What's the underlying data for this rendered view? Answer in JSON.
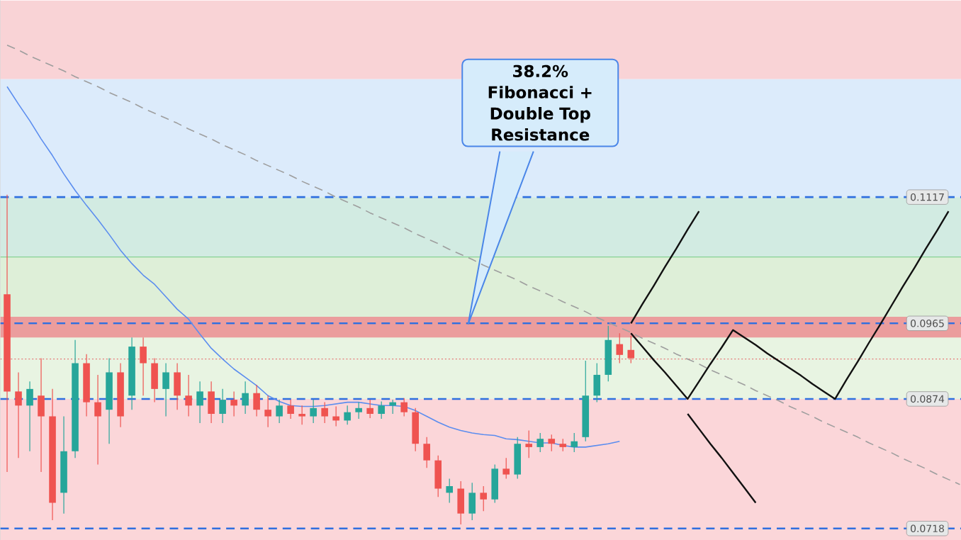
{
  "chart_data": {
    "type": "candlestick",
    "tick_labels": "y",
    "categories": [
      null,
      null,
      null,
      null,
      null,
      null,
      null,
      null,
      null,
      null,
      null,
      null,
      null,
      null,
      null,
      null,
      null,
      null,
      null,
      null,
      null,
      null,
      null,
      null,
      null,
      null,
      null,
      null,
      null,
      null,
      null,
      null,
      null,
      null,
      null,
      null,
      null,
      null,
      null,
      null,
      null,
      null,
      null,
      null,
      null,
      null,
      null,
      null,
      null,
      null,
      null,
      null,
      null,
      null,
      null,
      null,
      null,
      null,
      null,
      null,
      null,
      null,
      null,
      null,
      null,
      null,
      null,
      null,
      null,
      null,
      null,
      null,
      null,
      null,
      null,
      null,
      null,
      null,
      null,
      null,
      null,
      null,
      null,
      null,
      null
    ],
    "ylim": [
      0.0704,
      0.1354
    ],
    "yticks": [
      0.1117,
      0.0965,
      0.0874,
      0.0718
    ],
    "ohlc": [
      [
        0.1,
        0.112,
        0.0786,
        0.0883
      ],
      [
        0.0883,
        0.0906,
        0.0803,
        0.0866
      ],
      [
        0.0866,
        0.0895,
        0.0811,
        0.0886
      ],
      [
        0.0878,
        0.0923,
        0.0786,
        0.0853
      ],
      [
        0.0853,
        0.0886,
        0.0728,
        0.0749
      ],
      [
        0.0761,
        0.0853,
        0.0736,
        0.0811
      ],
      [
        0.0811,
        0.0945,
        0.0803,
        0.0917
      ],
      [
        0.0917,
        0.0928,
        0.0853,
        0.087
      ],
      [
        0.087,
        0.0903,
        0.0795,
        0.0853
      ],
      [
        0.0861,
        0.0923,
        0.082,
        0.0906
      ],
      [
        0.0906,
        0.0917,
        0.084,
        0.0853
      ],
      [
        0.0878,
        0.0948,
        0.0861,
        0.0937
      ],
      [
        0.0937,
        0.0948,
        0.0878,
        0.0917
      ],
      [
        0.0917,
        0.0923,
        0.087,
        0.0886
      ],
      [
        0.0886,
        0.0917,
        0.0853,
        0.0906
      ],
      [
        0.0906,
        0.0917,
        0.0861,
        0.0878
      ],
      [
        0.0878,
        0.0903,
        0.0853,
        0.0866
      ],
      [
        0.0866,
        0.0895,
        0.0845,
        0.0883
      ],
      [
        0.0883,
        0.0895,
        0.0845,
        0.0856
      ],
      [
        0.0856,
        0.0886,
        0.0845,
        0.0873
      ],
      [
        0.0873,
        0.0883,
        0.0853,
        0.0866
      ],
      [
        0.0866,
        0.0895,
        0.0856,
        0.0881
      ],
      [
        0.0881,
        0.0891,
        0.0853,
        0.0861
      ],
      [
        0.0861,
        0.0878,
        0.084,
        0.0853
      ],
      [
        0.0853,
        0.0873,
        0.0845,
        0.0866
      ],
      [
        0.0866,
        0.0873,
        0.085,
        0.0856
      ],
      [
        0.0856,
        0.0866,
        0.0843,
        0.0853
      ],
      [
        0.0853,
        0.0873,
        0.0845,
        0.0863
      ],
      [
        0.0863,
        0.087,
        0.0845,
        0.0853
      ],
      [
        0.0853,
        0.0865,
        0.0841,
        0.0848
      ],
      [
        0.0848,
        0.0866,
        0.0843,
        0.0858
      ],
      [
        0.0858,
        0.087,
        0.085,
        0.0863
      ],
      [
        0.0863,
        0.0873,
        0.0851,
        0.0856
      ],
      [
        0.0856,
        0.0871,
        0.085,
        0.0866
      ],
      [
        0.0866,
        0.0873,
        0.0856,
        0.087
      ],
      [
        0.087,
        0.0875,
        0.0853,
        0.0858
      ],
      [
        0.0858,
        0.0863,
        0.0811,
        0.082
      ],
      [
        0.082,
        0.0828,
        0.0791,
        0.08
      ],
      [
        0.08,
        0.0806,
        0.0756,
        0.0766
      ],
      [
        0.0761,
        0.0778,
        0.0749,
        0.0769
      ],
      [
        0.0766,
        0.0775,
        0.0723,
        0.0736
      ],
      [
        0.0736,
        0.0773,
        0.0728,
        0.0761
      ],
      [
        0.0761,
        0.0769,
        0.0739,
        0.0753
      ],
      [
        0.0753,
        0.0795,
        0.0749,
        0.079
      ],
      [
        0.079,
        0.0803,
        0.0778,
        0.0783
      ],
      [
        0.0783,
        0.0828,
        0.0778,
        0.082
      ],
      [
        0.082,
        0.0836,
        0.0803,
        0.0816
      ],
      [
        0.0816,
        0.0833,
        0.081,
        0.0826
      ],
      [
        0.0826,
        0.0831,
        0.0811,
        0.082
      ],
      [
        0.082,
        0.0826,
        0.0811,
        0.0816
      ],
      [
        0.0816,
        0.0833,
        0.081,
        0.0823
      ],
      [
        0.0828,
        0.092,
        0.0823,
        0.0878
      ],
      [
        0.0878,
        0.0917,
        0.087,
        0.0903
      ],
      [
        0.0903,
        0.0962,
        0.0895,
        0.0945
      ],
      [
        0.094,
        0.0953,
        0.0917,
        0.0927
      ],
      [
        0.0933,
        0.095,
        0.0917,
        0.0923
      ],
      null,
      null,
      null,
      null,
      null,
      null,
      null,
      null,
      null,
      null,
      null,
      null,
      null,
      null,
      null,
      null,
      null,
      null,
      null,
      null,
      null,
      null,
      null,
      null,
      null,
      null,
      null,
      null,
      null
    ],
    "series": [
      {
        "type": "line",
        "color": "#9e9e9e",
        "line_style": "dashed",
        "values": [
          0.13,
          0.1294,
          0.1287,
          0.1281,
          0.1275,
          0.1269,
          0.1262,
          0.1256,
          0.125,
          0.1243,
          0.1237,
          0.1231,
          0.1224,
          0.1218,
          0.1212,
          0.1206,
          0.1199,
          0.1193,
          0.1187,
          0.118,
          0.1174,
          0.1168,
          0.1161,
          0.1155,
          0.1149,
          0.1143,
          0.1136,
          0.113,
          0.1124,
          0.1117,
          0.1111,
          0.1105,
          0.1098,
          0.1092,
          0.1086,
          0.108,
          0.1073,
          0.1067,
          0.1061,
          0.1054,
          0.1048,
          0.1042,
          0.1035,
          0.1029,
          0.1023,
          0.1017,
          0.101,
          0.1004,
          0.0998,
          0.0991,
          0.0985,
          0.0979,
          0.0972,
          0.0966,
          0.096,
          0.0954,
          0.0947,
          0.0941,
          0.0935,
          0.0928,
          0.0922,
          0.0916,
          0.0909,
          0.0903,
          0.0897,
          0.0891,
          0.0884,
          0.0878,
          0.0872,
          0.0865,
          0.0859,
          0.0853,
          0.0846,
          0.084,
          0.0834,
          0.0828,
          0.0821,
          0.0815,
          0.0809,
          0.0802,
          0.0796,
          0.079,
          0.0783,
          0.0777,
          0.0771
        ]
      },
      {
        "type": "line",
        "color": "#5b8def",
        "line_style": "solid",
        "values": [
          0.125,
          0.1229,
          0.1209,
          0.1187,
          0.1167,
          0.1145,
          0.1125,
          0.1107,
          0.109,
          0.1072,
          0.1053,
          0.1037,
          0.1023,
          0.1012,
          0.0997,
          0.0982,
          0.097,
          0.0952,
          0.0935,
          0.0922,
          0.091,
          0.09,
          0.089,
          0.0878,
          0.0871,
          0.0866,
          0.0865,
          0.0865,
          0.0866,
          0.0868,
          0.087,
          0.087,
          0.0868,
          0.0866,
          0.0866,
          0.0865,
          0.086,
          0.0853,
          0.0846,
          0.084,
          0.0836,
          0.0833,
          0.0831,
          0.083,
          0.0826,
          0.0825,
          0.0823,
          0.0821,
          0.0821,
          0.0818,
          0.0816,
          0.0816,
          0.0818,
          0.082,
          0.0823,
          null,
          null,
          null,
          null,
          null,
          null,
          null,
          null,
          null,
          null,
          null,
          null,
          null,
          null,
          null,
          null,
          null,
          null,
          null,
          null,
          null,
          null,
          null,
          null,
          null,
          null,
          null,
          null,
          null,
          null
        ]
      },
      {
        "type": "line",
        "color": "#111111",
        "line_style": "solid",
        "values": [
          null,
          null,
          null,
          null,
          null,
          null,
          null,
          null,
          null,
          null,
          null,
          null,
          null,
          null,
          null,
          null,
          null,
          null,
          null,
          null,
          null,
          null,
          null,
          null,
          null,
          null,
          null,
          null,
          null,
          null,
          null,
          null,
          null,
          null,
          null,
          null,
          null,
          null,
          null,
          null,
          null,
          null,
          null,
          null,
          null,
          null,
          null,
          null,
          null,
          null,
          null,
          null,
          null,
          null,
          null,
          0.0965,
          0.0988,
          0.101,
          0.1033,
          0.1055,
          0.1078,
          0.11,
          null,
          null,
          null,
          null,
          null,
          null,
          null,
          null,
          null,
          null,
          null,
          null,
          null,
          null,
          null,
          null,
          null,
          null,
          null,
          null,
          null,
          null,
          null
        ]
      },
      {
        "type": "line",
        "color": "#111111",
        "line_style": "solid",
        "values": [
          null,
          null,
          null,
          null,
          null,
          null,
          null,
          null,
          null,
          null,
          null,
          null,
          null,
          null,
          null,
          null,
          null,
          null,
          null,
          null,
          null,
          null,
          null,
          null,
          null,
          null,
          null,
          null,
          null,
          null,
          null,
          null,
          null,
          null,
          null,
          null,
          null,
          null,
          null,
          null,
          null,
          null,
          null,
          null,
          null,
          null,
          null,
          null,
          null,
          null,
          null,
          null,
          null,
          null,
          null,
          0.0953,
          0.0937,
          0.0921,
          0.0906,
          0.089,
          0.0874,
          0.0895,
          0.0916,
          0.0936,
          0.0957,
          0.0948,
          0.0939,
          0.0929,
          0.092,
          0.0911,
          0.0902,
          0.0892,
          0.0883,
          0.0874,
          0.0897,
          0.0919,
          0.0942,
          0.0964,
          0.0987,
          0.101,
          0.1032,
          0.1055,
          0.1077,
          0.11,
          null
        ]
      },
      {
        "type": "line",
        "color": "#111111",
        "line_style": "solid",
        "values": [
          null,
          null,
          null,
          null,
          null,
          null,
          null,
          null,
          null,
          null,
          null,
          null,
          null,
          null,
          null,
          null,
          null,
          null,
          null,
          null,
          null,
          null,
          null,
          null,
          null,
          null,
          null,
          null,
          null,
          null,
          null,
          null,
          null,
          null,
          null,
          null,
          null,
          null,
          null,
          null,
          null,
          null,
          null,
          null,
          null,
          null,
          null,
          null,
          null,
          null,
          null,
          null,
          null,
          null,
          null,
          null,
          null,
          null,
          null,
          null,
          0.0856,
          0.0838,
          0.082,
          0.0803,
          0.0785,
          0.0767,
          0.0749,
          null,
          null,
          null,
          null,
          null,
          null,
          null,
          null,
          null,
          null,
          null,
          null,
          null,
          null,
          null,
          null,
          null,
          null
        ]
      }
    ],
    "bands": [
      {
        "axis": "y",
        "from": 0.1259,
        "to": 0.1354,
        "color": "#f9d3d6"
      },
      {
        "axis": "y",
        "from": 0.1117,
        "to": 0.1259,
        "color": "#dcebfb"
      },
      {
        "axis": "y",
        "from": 0.1045,
        "to": 0.1117,
        "color": "#d2ebe2"
      },
      {
        "axis": "y",
        "from": 0.0965,
        "to": 0.1045,
        "color": "#deefd8"
      },
      {
        "axis": "y",
        "from": 0.0874,
        "to": 0.0965,
        "color": "#e8f4e2"
      },
      {
        "axis": "y",
        "from": 0.0704,
        "to": 0.0874,
        "color": "#fbd6d9"
      },
      {
        "axis": "y",
        "from": 0.0948,
        "to": 0.0973,
        "color": "#eb9d9d"
      }
    ],
    "ref_lines": [
      {
        "axis": "y",
        "value": 0.1045,
        "color": "#86d193",
        "line_style": "solid"
      },
      {
        "axis": "y",
        "value": 0.0922,
        "color": "#e57373",
        "line_style": "dotted"
      },
      {
        "axis": "y",
        "value": 0.1117,
        "color": "#2f6fe0",
        "line_style": "dashed"
      },
      {
        "axis": "y",
        "value": 0.0965,
        "color": "#2f6fe0",
        "line_style": "dashed"
      },
      {
        "axis": "y",
        "value": 0.0874,
        "color": "#2f6fe0",
        "line_style": "dashed"
      },
      {
        "axis": "y",
        "value": 0.0718,
        "color": "#2f6fe0",
        "line_style": "dashed"
      }
    ],
    "annotations": [
      "38.2% Fibonacci + Double Top Resistance"
    ]
  }
}
